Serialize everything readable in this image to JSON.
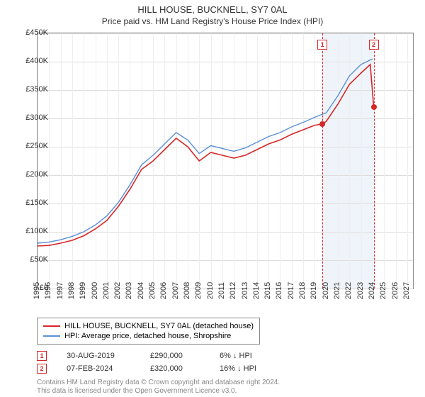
{
  "title": "HILL HOUSE, BUCKNELL, SY7 0AL",
  "subtitle": "Price paid vs. HM Land Registry's House Price Index (HPI)",
  "chart": {
    "type": "line",
    "xlim": [
      1995,
      2027.5
    ],
    "ylim": [
      0,
      450000
    ],
    "ytick_step": 50000,
    "xtick_step": 1,
    "xtick_max": 2027,
    "background_color": "#ffffff",
    "grid_color": "#dddddd",
    "shaded_region": {
      "start": 2019.66,
      "end": 2024.1,
      "color": "#e6eef8"
    },
    "series": [
      {
        "name": "HILL HOUSE, BUCKNELL, SY7 0AL (detached house)",
        "color": "#d62728",
        "width": 1.6,
        "data": [
          [
            1995,
            75000
          ],
          [
            1996,
            76000
          ],
          [
            1997,
            80000
          ],
          [
            1998,
            85000
          ],
          [
            1999,
            93000
          ],
          [
            2000,
            105000
          ],
          [
            2001,
            120000
          ],
          [
            2002,
            145000
          ],
          [
            2003,
            175000
          ],
          [
            2004,
            210000
          ],
          [
            2005,
            225000
          ],
          [
            2006,
            245000
          ],
          [
            2007,
            265000
          ],
          [
            2008,
            250000
          ],
          [
            2009,
            225000
          ],
          [
            2010,
            240000
          ],
          [
            2011,
            235000
          ],
          [
            2012,
            230000
          ],
          [
            2013,
            235000
          ],
          [
            2014,
            245000
          ],
          [
            2015,
            255000
          ],
          [
            2016,
            262000
          ],
          [
            2017,
            272000
          ],
          [
            2018,
            280000
          ],
          [
            2019,
            288000
          ],
          [
            2019.66,
            290000
          ],
          [
            2020,
            295000
          ],
          [
            2021,
            325000
          ],
          [
            2022,
            360000
          ],
          [
            2023,
            380000
          ],
          [
            2023.8,
            395000
          ],
          [
            2024.1,
            320000
          ],
          [
            2024.3,
            320000
          ]
        ]
      },
      {
        "name": "HPI: Average price, detached house, Shropshire",
        "color": "#5b8fd6",
        "width": 1.4,
        "data": [
          [
            1995,
            80000
          ],
          [
            1996,
            82000
          ],
          [
            1997,
            86000
          ],
          [
            1998,
            92000
          ],
          [
            1999,
            100000
          ],
          [
            2000,
            112000
          ],
          [
            2001,
            128000
          ],
          [
            2002,
            152000
          ],
          [
            2003,
            183000
          ],
          [
            2004,
            218000
          ],
          [
            2005,
            235000
          ],
          [
            2006,
            255000
          ],
          [
            2007,
            275000
          ],
          [
            2008,
            262000
          ],
          [
            2009,
            238000
          ],
          [
            2010,
            252000
          ],
          [
            2011,
            247000
          ],
          [
            2012,
            242000
          ],
          [
            2013,
            248000
          ],
          [
            2014,
            258000
          ],
          [
            2015,
            268000
          ],
          [
            2016,
            275000
          ],
          [
            2017,
            285000
          ],
          [
            2018,
            293000
          ],
          [
            2019,
            302000
          ],
          [
            2020,
            310000
          ],
          [
            2021,
            340000
          ],
          [
            2022,
            375000
          ],
          [
            2023,
            395000
          ],
          [
            2024,
            405000
          ]
        ]
      }
    ],
    "markers": [
      {
        "label": "1",
        "year": 2019.66,
        "box_y": 430000
      },
      {
        "label": "2",
        "year": 2024.1,
        "box_y": 430000
      }
    ],
    "sale_points": [
      {
        "year": 2019.66,
        "price": 290000,
        "color": "#d62728"
      },
      {
        "year": 2024.1,
        "price": 320000,
        "color": "#d62728"
      }
    ]
  },
  "legend": {
    "items": [
      {
        "label": "HILL HOUSE, BUCKNELL, SY7 0AL (detached house)",
        "color": "#d62728"
      },
      {
        "label": "HPI: Average price, detached house, Shropshire",
        "color": "#5b8fd6"
      }
    ]
  },
  "sales": [
    {
      "marker": "1",
      "date": "30-AUG-2019",
      "price": "£290,000",
      "diff": "6% ↓ HPI"
    },
    {
      "marker": "2",
      "date": "07-FEB-2024",
      "price": "£320,000",
      "diff": "16% ↓ HPI"
    }
  ],
  "footer": {
    "line1": "Contains HM Land Registry data © Crown copyright and database right 2024.",
    "line2": "This data is licensed under the Open Government Licence v3.0."
  },
  "styles": {
    "title_fontsize": 13,
    "subtitle_fontsize": 12,
    "axis_fontsize": 11
  }
}
